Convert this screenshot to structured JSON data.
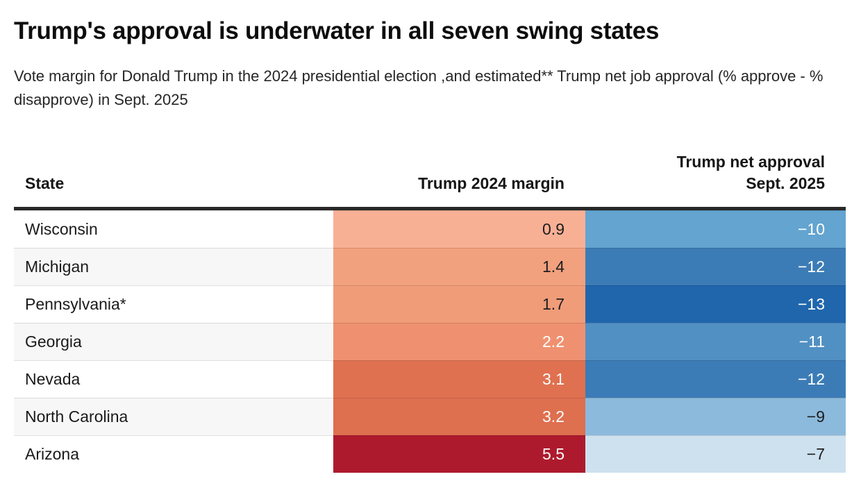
{
  "header": {
    "title": "Trump's approval is underwater in all seven swing states",
    "subtitle": "Vote margin for Donald Trump in the 2024 presidential election ,and estimated** Trump net job approval (% approve - % disapprove) in Sept. 2025"
  },
  "table": {
    "headers": {
      "state": "State",
      "margin": "Trump 2024 margin",
      "approval_line1": "Trump net approval",
      "approval_line2": "Sept. 2025"
    },
    "rows": [
      {
        "state": "Wisconsin",
        "margin": "0.9",
        "approval": "−10",
        "row_bg": "#ffffff",
        "margin_bg": "#f8b095",
        "margin_fg": "#1d1d1d",
        "approval_bg": "#63a4d0",
        "approval_fg": "#ffffff"
      },
      {
        "state": "Michigan",
        "margin": "1.4",
        "approval": "−12",
        "row_bg": "#f7f7f7",
        "margin_bg": "#f2a17e",
        "margin_fg": "#1d1d1d",
        "approval_bg": "#3c7cb6",
        "approval_fg": "#ffffff"
      },
      {
        "state": "Pennsylvania*",
        "margin": "1.7",
        "approval": "−13",
        "row_bg": "#ffffff",
        "margin_bg": "#f09c79",
        "margin_fg": "#1d1d1d",
        "approval_bg": "#2066ac",
        "approval_fg": "#ffffff"
      },
      {
        "state": "Georgia",
        "margin": "2.2",
        "approval": "−11",
        "row_bg": "#f7f7f7",
        "margin_bg": "#ef9170",
        "margin_fg": "#ffffff",
        "approval_bg": "#5190c3",
        "approval_fg": "#ffffff"
      },
      {
        "state": "Nevada",
        "margin": "3.1",
        "approval": "−12",
        "row_bg": "#ffffff",
        "margin_bg": "#e07150",
        "margin_fg": "#ffffff",
        "approval_bg": "#3c7cb6",
        "approval_fg": "#ffffff"
      },
      {
        "state": "North Carolina",
        "margin": "3.2",
        "approval": "−9",
        "row_bg": "#f7f7f7",
        "margin_bg": "#de6f4f",
        "margin_fg": "#ffffff",
        "approval_bg": "#8cbadc",
        "approval_fg": "#1d1d1d"
      },
      {
        "state": "Arizona",
        "margin": "5.5",
        "approval": "−7",
        "row_bg": "#ffffff",
        "margin_bg": "#ae1a2d",
        "margin_fg": "#ffffff",
        "approval_bg": "#cde1ef",
        "approval_fg": "#1d1d1d"
      }
    ]
  },
  "chart_data": {
    "type": "table",
    "title": "Trump's approval is underwater in all seven swing states",
    "subtitle": "Vote margin for Donald Trump in the 2024 presidential election ,and estimated** Trump net job approval (% approve - % disapprove) in Sept. 2025",
    "columns": [
      "State",
      "Trump 2024 margin",
      "Trump net approval Sept. 2025"
    ],
    "rows": [
      {
        "state": "Wisconsin",
        "trump_2024_margin": 0.9,
        "net_approval_sept_2025": -10
      },
      {
        "state": "Michigan",
        "trump_2024_margin": 1.4,
        "net_approval_sept_2025": -12
      },
      {
        "state": "Pennsylvania*",
        "trump_2024_margin": 1.7,
        "net_approval_sept_2025": -13
      },
      {
        "state": "Georgia",
        "trump_2024_margin": 2.2,
        "net_approval_sept_2025": -11
      },
      {
        "state": "Nevada",
        "trump_2024_margin": 3.1,
        "net_approval_sept_2025": -12
      },
      {
        "state": "North Carolina",
        "trump_2024_margin": 3.2,
        "net_approval_sept_2025": -9
      },
      {
        "state": "Arizona",
        "trump_2024_margin": 5.5,
        "net_approval_sept_2025": -7
      }
    ],
    "color_encoding": {
      "margin_column": "red/orange scale, darker red = larger Trump 2024 vote margin",
      "approval_column": "blue scale, darker blue = more negative net approval",
      "palette": "RdBu diverging"
    },
    "layout": {
      "grid": false,
      "legend": false,
      "value_alignment": "right"
    }
  }
}
